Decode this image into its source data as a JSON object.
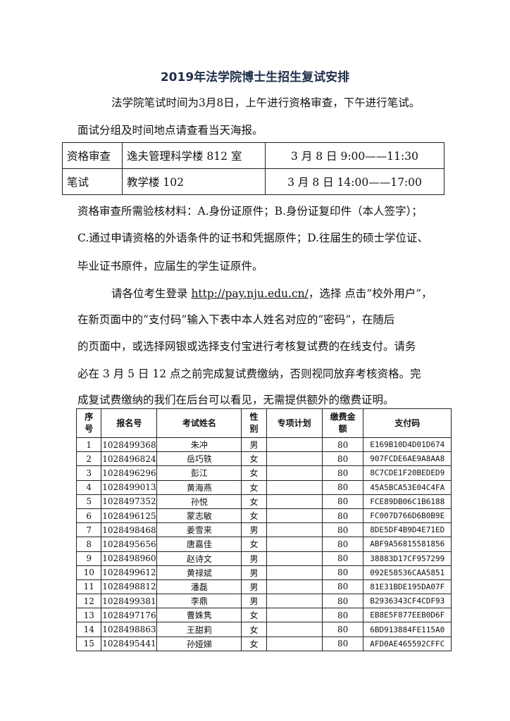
{
  "title": "2019年法学院博士生招生复试安排",
  "intro": {
    "line1": "法学院笔试时间为3月8日，上午进行资格审查，下午进行笔试。",
    "line2": "面试分组及时间地点请查看当天海报。"
  },
  "schedule": [
    {
      "item": "资格审查",
      "place": "逸夫管理科学楼 812 室",
      "time": "3 月 8 日  9:00——11:30"
    },
    {
      "item": "笔试",
      "place": "教学楼 102",
      "time": "3 月 8 日  14:00——17:00"
    }
  ],
  "materials": {
    "line1": "资格审查所需验核材料：A.身份证原件；B.身份证复印件（本人签字）；",
    "line2": "C.通过申请资格的外语条件的证书和凭据原件；D.往届生的硕士学位证、",
    "line3": "毕业证书原件，应届生的学生证原件。"
  },
  "payment": {
    "line1_pre": "请各位考生登录 ",
    "link": "http://pay.nju.edu.cn/",
    "line1_post": "，选择  点击“校外用户”，",
    "line2": "在新页面中的“支付码”输入下表中本人姓名对应的“密码”，在随后",
    "line3": "的页面中，或选择网银或选择支付宝进行考核复试费的在线支付。请务",
    "line4": "必在 3 月 5 日 12 点之前完成复试费缴纳，否则视同放弃考核资格。完",
    "line5": "成复试费缴纳的我们在后台可以看见，无需提供额外的缴费证明。"
  },
  "table": {
    "headers": [
      "序\n号",
      "报名号",
      "考试姓名",
      "性\n别",
      "专项计划",
      "缴费金\n额",
      "支付码"
    ],
    "rows": [
      [
        "1",
        "1028499368",
        "朱冲",
        "男",
        "",
        "80",
        "E169B10D4D01D674"
      ],
      [
        "2",
        "1028496824",
        "岳巧轶",
        "女",
        "",
        "80",
        "907FCDE6AE9A8AA8"
      ],
      [
        "3",
        "1028496296",
        "彭江",
        "女",
        "",
        "80",
        "8C7CDE1F20BEDED9"
      ],
      [
        "4",
        "1028499013",
        "黄海燕",
        "女",
        "",
        "80",
        "45A5BCA53E04C4FA"
      ],
      [
        "5",
        "1028497352",
        "孙悦",
        "女",
        "",
        "80",
        "FCE89DB06C1B6188"
      ],
      [
        "6",
        "1028496125",
        "蒙志敏",
        "女",
        "",
        "80",
        "FC007D766D6B0B9E"
      ],
      [
        "7",
        "1028498468",
        "姜雪来",
        "男",
        "",
        "80",
        "8DE5DF4B9D4E71ED"
      ],
      [
        "8",
        "1028495656",
        "唐嘉佳",
        "女",
        "",
        "80",
        "ABF9A56815581856"
      ],
      [
        "9",
        "1028498960",
        "赵诗文",
        "男",
        "",
        "80",
        "38883D17CF957299"
      ],
      [
        "10",
        "1028499612",
        "黄禄斌",
        "男",
        "",
        "80",
        "092E58536CAA5851"
      ],
      [
        "11",
        "1028498812",
        "潘磊",
        "男",
        "",
        "80",
        "81E31BDE195DA07F"
      ],
      [
        "12",
        "1028499381",
        "李鼎",
        "男",
        "",
        "80",
        "B2936343CF4CDF93"
      ],
      [
        "13",
        "1028497176",
        "曹姝隽",
        "女",
        "",
        "80",
        "EB8E5F877EEB0D6F"
      ],
      [
        "14",
        "1028498863",
        "王甜莉",
        "女",
        "",
        "80",
        "6BD913884FE115A0"
      ],
      [
        "15",
        "1028495441",
        "孙娅娣",
        "女",
        "",
        "80",
        "AFD0AE465592CFFC"
      ]
    ]
  }
}
